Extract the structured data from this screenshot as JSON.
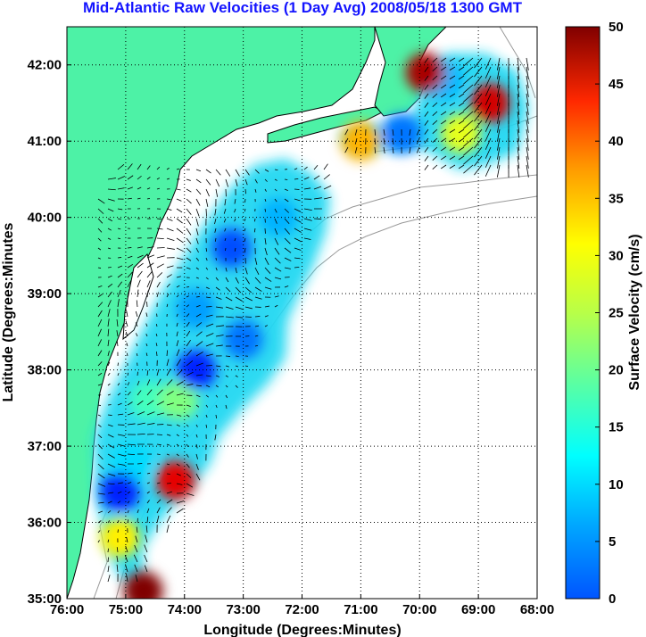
{
  "chart_data": {
    "type": "heatmap",
    "title": "Mid-Atlantic Raw Velocities (1 Day Avg) 2008/05/18 1300 GMT",
    "xlabel": "Longitude (Degrees:Minutes)",
    "ylabel": "Latitude (Degrees:Minutes",
    "xlim": [
      -76,
      -68
    ],
    "ylim": [
      35,
      42.5
    ],
    "x_ticks": [
      {
        "value": -76,
        "label": "76:00"
      },
      {
        "value": -75,
        "label": "75:00"
      },
      {
        "value": -74,
        "label": "74:00"
      },
      {
        "value": -73,
        "label": "73:00"
      },
      {
        "value": -72,
        "label": "72:00"
      },
      {
        "value": -71,
        "label": "71:00"
      },
      {
        "value": -70,
        "label": "70:00"
      },
      {
        "value": -69,
        "label": "69:00"
      },
      {
        "value": -68,
        "label": "68:00"
      }
    ],
    "y_ticks": [
      {
        "value": 35,
        "label": "35:00"
      },
      {
        "value": 36,
        "label": "36:00"
      },
      {
        "value": 37,
        "label": "37:00"
      },
      {
        "value": 38,
        "label": "38:00"
      },
      {
        "value": 39,
        "label": "39:00"
      },
      {
        "value": 40,
        "label": "40:00"
      },
      {
        "value": 41,
        "label": "41:00"
      },
      {
        "value": 42,
        "label": "42:00"
      }
    ],
    "grid": true,
    "grid_style": "dotted",
    "land_color": "#4df2a6",
    "colorbar": {
      "label": "Surface Velocity (cm/s)",
      "range": [
        0,
        50
      ],
      "ticks": [
        {
          "value": 0,
          "label": "0"
        },
        {
          "value": 5,
          "label": "5"
        },
        {
          "value": 10,
          "label": "10"
        },
        {
          "value": 15,
          "label": "15"
        },
        {
          "value": 20,
          "label": "20"
        },
        {
          "value": 25,
          "label": "25"
        },
        {
          "value": 30,
          "label": "30"
        },
        {
          "value": 35,
          "label": "35"
        },
        {
          "value": 40,
          "label": "40"
        },
        {
          "value": 45,
          "label": "45"
        },
        {
          "value": 50,
          "label": "50"
        }
      ],
      "colormap": "jet",
      "placement": "right"
    },
    "velocity_field": {
      "description_units": "cm/s",
      "regions": [
        {
          "lon": -73.2,
          "lat": 39.6,
          "speed": 10
        },
        {
          "lon": -72.4,
          "lat": 40.0,
          "speed": 15
        },
        {
          "lon": -73.8,
          "lat": 38.8,
          "speed": 14
        },
        {
          "lon": -73.0,
          "lat": 38.4,
          "speed": 12
        },
        {
          "lon": -74.6,
          "lat": 37.6,
          "speed": 22
        },
        {
          "lon": -74.1,
          "lat": 37.6,
          "speed": 25
        },
        {
          "lon": -73.8,
          "lat": 38.0,
          "speed": 8
        },
        {
          "lon": -74.9,
          "lat": 36.8,
          "speed": 17
        },
        {
          "lon": -75.1,
          "lat": 36.4,
          "speed": 8
        },
        {
          "lon": -74.15,
          "lat": 36.55,
          "speed": 45
        },
        {
          "lon": -75.1,
          "lat": 35.8,
          "speed": 32
        },
        {
          "lon": -74.7,
          "lat": 35.1,
          "speed": 50
        },
        {
          "lon": -70.3,
          "lat": 41.1,
          "speed": 12
        },
        {
          "lon": -69.6,
          "lat": 41.8,
          "speed": 15
        },
        {
          "lon": -69.9,
          "lat": 41.9,
          "speed": 48
        },
        {
          "lon": -68.8,
          "lat": 41.5,
          "speed": 46
        },
        {
          "lon": -69.3,
          "lat": 41.1,
          "speed": 30
        },
        {
          "lon": -71.0,
          "lat": 41.0,
          "speed": 35
        }
      ]
    }
  }
}
